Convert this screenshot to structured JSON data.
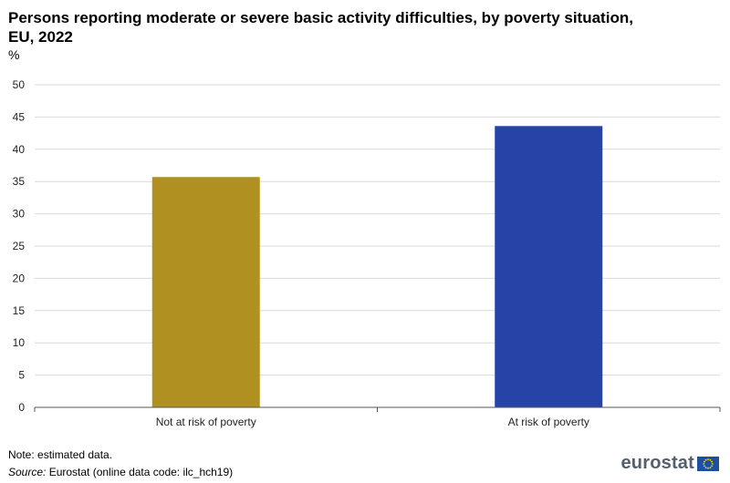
{
  "header": {
    "title": "Persons reporting moderate or severe basic activity difficulties, by poverty situation, EU, 2022",
    "unit": "%"
  },
  "chart_data": {
    "type": "bar",
    "title": "Persons reporting moderate or severe basic activity difficulties, by poverty situation, EU, 2022",
    "ylabel": "%",
    "xlabel": "",
    "categories": [
      "Not at risk of poverty",
      "At risk of poverty"
    ],
    "values": [
      35.7,
      43.6
    ],
    "colors": [
      "#b09020",
      "#2644a8"
    ],
    "ylim": [
      0,
      50
    ],
    "yticks": [
      0,
      5,
      10,
      15,
      20,
      25,
      30,
      35,
      40,
      45,
      50
    ],
    "grid": true,
    "legend": "none"
  },
  "footer": {
    "note": "Note: estimated data.",
    "source_label": "Source:",
    "source_text": " Eurostat (online data code: ilc_hch19)",
    "logo_text": "eurostat"
  },
  "colors": {
    "gridline": "#d9d9d9",
    "axis": "#555555",
    "logo_text": "#555f6b",
    "flag_blue": "#1f4fa3",
    "flag_stars": "#ffdd00"
  },
  "icons": {
    "logo_flag": "eu-flag-icon"
  }
}
